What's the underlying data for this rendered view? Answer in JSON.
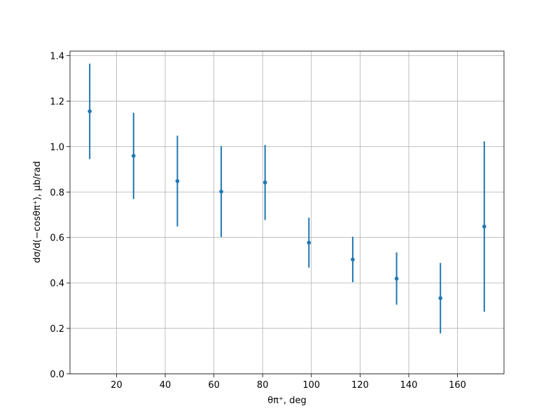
{
  "chart_data": {
    "type": "scatter",
    "x_label": "θπ⁺, deg",
    "y_label": "dσ/d(−cosθπ⁺), μb/rad",
    "x": [
      9,
      27,
      45,
      63,
      81,
      99,
      117,
      135,
      153,
      171
    ],
    "series": [
      {
        "color": "#1f77b4",
        "values": [
          1.155,
          0.959,
          0.848,
          0.802,
          0.842,
          0.577,
          0.503,
          0.419,
          0.333,
          0.648
        ],
        "errors": [
          0.21,
          0.19,
          0.2,
          0.2,
          0.165,
          0.11,
          0.1,
          0.115,
          0.155,
          0.375
        ]
      }
    ],
    "xlim": [
      0.9,
      179.1
    ],
    "ylim": [
      0,
      1.42
    ],
    "xticks": [
      20,
      40,
      60,
      80,
      100,
      120,
      140,
      160
    ],
    "yticks": [
      {
        "value": 0,
        "label": "0.0"
      },
      {
        "value": 0.2,
        "label": "0.2"
      },
      {
        "value": 0.4,
        "label": "0.4"
      },
      {
        "value": 0.6,
        "label": "0.6"
      },
      {
        "value": 0.8,
        "label": "0.8"
      },
      {
        "value": 1.0,
        "label": "1.0"
      },
      {
        "value": 1.2,
        "label": "1.2"
      },
      {
        "value": 1.4,
        "label": "1.4"
      }
    ],
    "grid": true
  }
}
